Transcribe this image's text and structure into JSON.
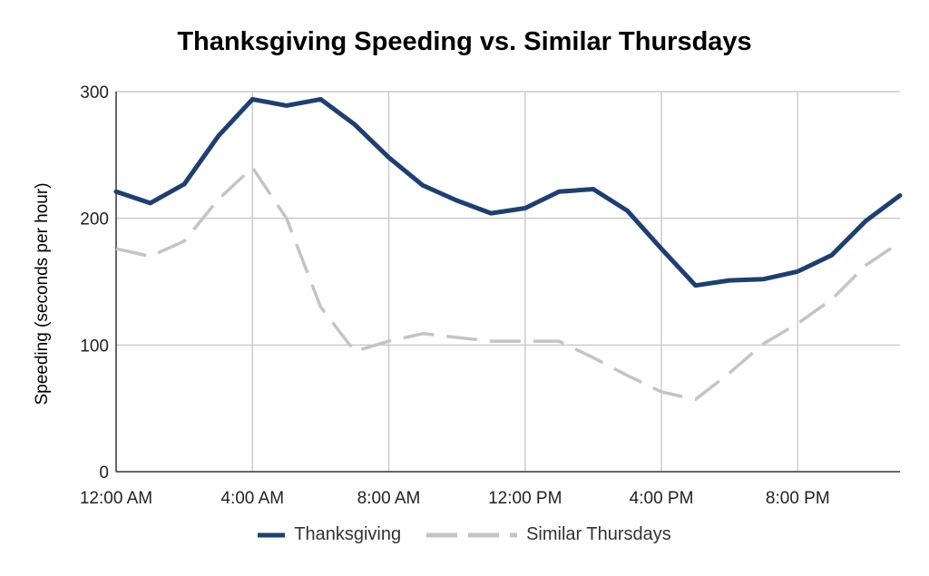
{
  "chart_data": {
    "type": "line",
    "title": "Thanksgiving Speeding vs. Similar Thursdays",
    "xlabel": "",
    "ylabel": "Speeding (seconds per hour)",
    "x_tick_labels": [
      "12:00 AM",
      "4:00 AM",
      "8:00 AM",
      "12:00 PM",
      "4:00 PM",
      "8:00 PM"
    ],
    "x_hours": [
      0,
      1,
      2,
      3,
      4,
      5,
      6,
      7,
      8,
      9,
      10,
      11,
      12,
      13,
      14,
      15,
      16,
      17,
      18,
      19,
      20,
      21,
      22,
      23
    ],
    "ylim": [
      0,
      300
    ],
    "y_ticks": [
      0,
      100,
      200,
      300
    ],
    "grid": true,
    "legend_position": "bottom",
    "series": [
      {
        "name": "Thanksgiving",
        "color": "#1f3f6e",
        "style": "solid",
        "values": [
          221,
          212,
          227,
          265,
          294,
          289,
          294,
          274,
          248,
          226,
          214,
          204,
          208,
          221,
          223,
          206,
          176,
          147,
          151,
          152,
          158,
          171,
          198,
          218
        ]
      },
      {
        "name": "Similar Thursdays",
        "color": "#c4c4c4",
        "style": "dashed",
        "values": [
          176,
          170,
          182,
          215,
          240,
          200,
          130,
          95,
          103,
          109,
          106,
          103,
          103,
          103,
          90,
          76,
          63,
          57,
          78,
          101,
          117,
          136,
          163,
          181
        ]
      }
    ]
  }
}
